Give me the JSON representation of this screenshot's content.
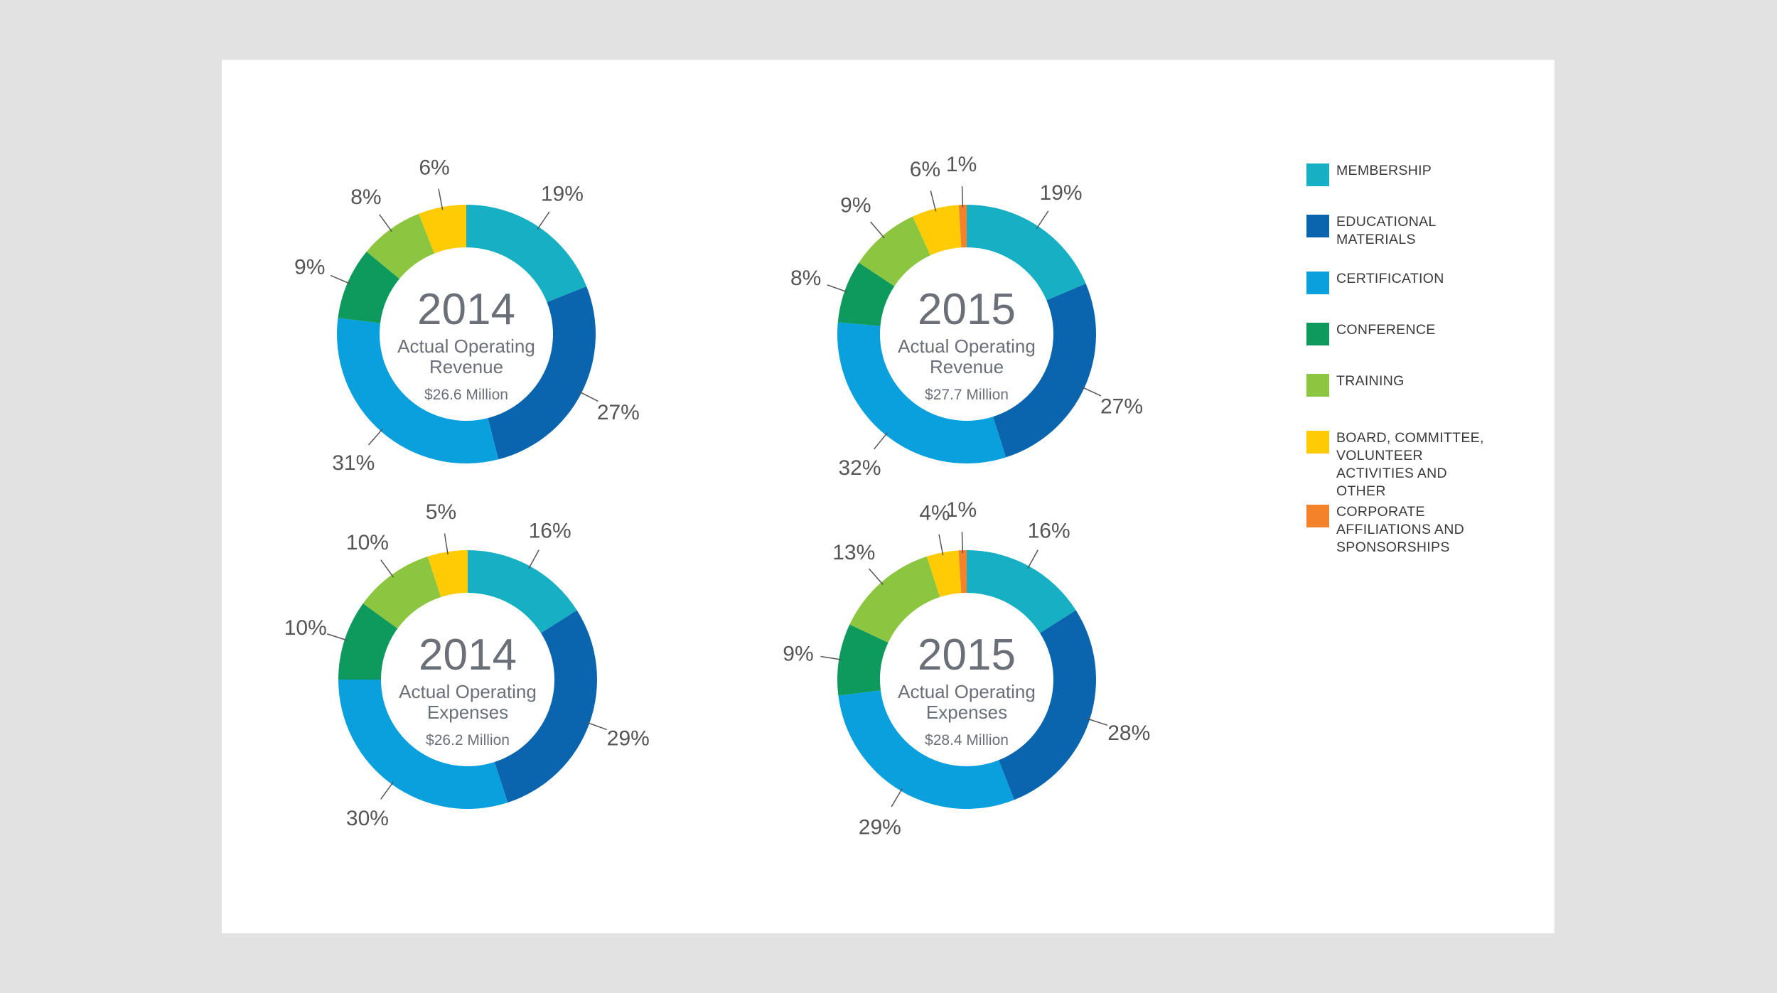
{
  "legend": {
    "items": [
      {
        "label": "MEMBERSHIP",
        "color": "#17afc4"
      },
      {
        "label": "EDUCATIONAL MATERIALS",
        "color": "#0b65ae"
      },
      {
        "label": "CERTIFICATION",
        "color": "#0aa0dd"
      },
      {
        "label": "CONFERENCE",
        "color": "#0e9a5c"
      },
      {
        "label": "TRAINING",
        "color": "#8cc540"
      },
      {
        "label": "BOARD, COMMITTEE, VOLUNTEER ACTIVITIES AND OTHER",
        "color": "#fecb05"
      },
      {
        "label": "CORPORATE AFFILIATIONS AND SPONSORSHIPS",
        "color": "#f3822b"
      }
    ]
  },
  "chart_data": [
    {
      "type": "pie",
      "variant": "donut",
      "year": "2014",
      "subtitle": "Actual Operating Revenue",
      "total": "$26.6 Million",
      "categories": [
        "MEMBERSHIP",
        "EDUCATIONAL MATERIALS",
        "CERTIFICATION",
        "CONFERENCE",
        "TRAINING",
        "BOARD, COMMITTEE, VOLUNTEER ACTIVITIES AND OTHER"
      ],
      "values": [
        19,
        27,
        31,
        9,
        8,
        6
      ],
      "labels": [
        "19%",
        "27%",
        "31%",
        "9%",
        "8%",
        "6%"
      ]
    },
    {
      "type": "pie",
      "variant": "donut",
      "year": "2015",
      "subtitle": "Actual Operating Revenue",
      "total": "$27.7 Million",
      "categories": [
        "MEMBERSHIP",
        "EDUCATIONAL MATERIALS",
        "CERTIFICATION",
        "CONFERENCE",
        "TRAINING",
        "BOARD, COMMITTEE, VOLUNTEER ACTIVITIES AND OTHER",
        "CORPORATE AFFILIATIONS AND SPONSORSHIPS"
      ],
      "values": [
        19,
        27,
        32,
        8,
        9,
        6,
        1
      ],
      "labels": [
        "19%",
        "27%",
        "32%",
        "8%",
        "9%",
        "6%",
        "1%"
      ]
    },
    {
      "type": "pie",
      "variant": "donut",
      "year": "2014",
      "subtitle": "Actual Operating Expenses",
      "total": "$26.2 Million",
      "categories": [
        "MEMBERSHIP",
        "EDUCATIONAL MATERIALS",
        "CERTIFICATION",
        "CONFERENCE",
        "TRAINING",
        "BOARD, COMMITTEE, VOLUNTEER ACTIVITIES AND OTHER"
      ],
      "values": [
        16,
        29,
        30,
        10,
        10,
        5
      ],
      "labels": [
        "16%",
        "29%",
        "30%",
        "10%",
        "10%",
        "5%"
      ]
    },
    {
      "type": "pie",
      "variant": "donut",
      "year": "2015",
      "subtitle": "Actual Operating Expenses",
      "total": "$28.4 Million",
      "categories": [
        "MEMBERSHIP",
        "EDUCATIONAL MATERIALS",
        "CERTIFICATION",
        "CONFERENCE",
        "TRAINING",
        "BOARD, COMMITTEE, VOLUNTEER ACTIVITIES AND OTHER",
        "CORPORATE AFFILIATIONS AND SPONSORSHIPS"
      ],
      "values": [
        16,
        28,
        29,
        9,
        13,
        4,
        1
      ],
      "labels": [
        "16%",
        "28%",
        "29%",
        "9%",
        "13%",
        "4%",
        "1%"
      ]
    }
  ]
}
